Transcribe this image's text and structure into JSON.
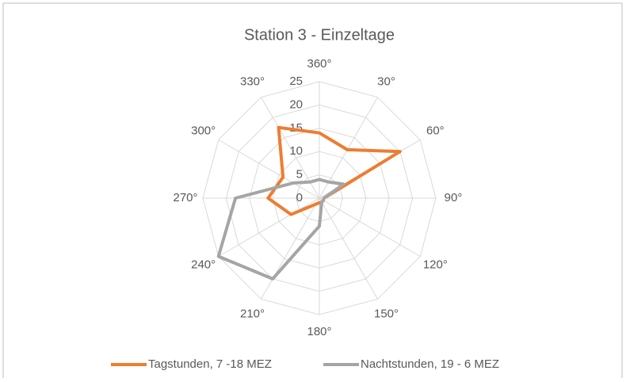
{
  "chart_data": {
    "type": "radar",
    "title": "Station 3 - Einzeltage",
    "categories": [
      "360°",
      "30°",
      "60°",
      "90°",
      "120°",
      "150°",
      "180°",
      "210°",
      "240°",
      "270°",
      "300°",
      "330°"
    ],
    "series": [
      {
        "name": "Tagstunden, 7 -18 MEZ",
        "color": "#ed7d31",
        "values": [
          14,
          12,
          20,
          1,
          1,
          1,
          1,
          1.5,
          7,
          11,
          9,
          17.5
        ]
      },
      {
        "name": "Nachtstunden, 19 - 6 MEZ",
        "color": "#a5a5a5",
        "values": [
          4,
          4,
          6,
          1,
          1,
          1,
          6,
          20,
          25,
          18,
          6.5,
          4
        ]
      }
    ],
    "ylim": [
      0,
      25
    ],
    "yticks": [
      0,
      5,
      10,
      15,
      20,
      25
    ],
    "grid": true,
    "legend": "bottom"
  }
}
